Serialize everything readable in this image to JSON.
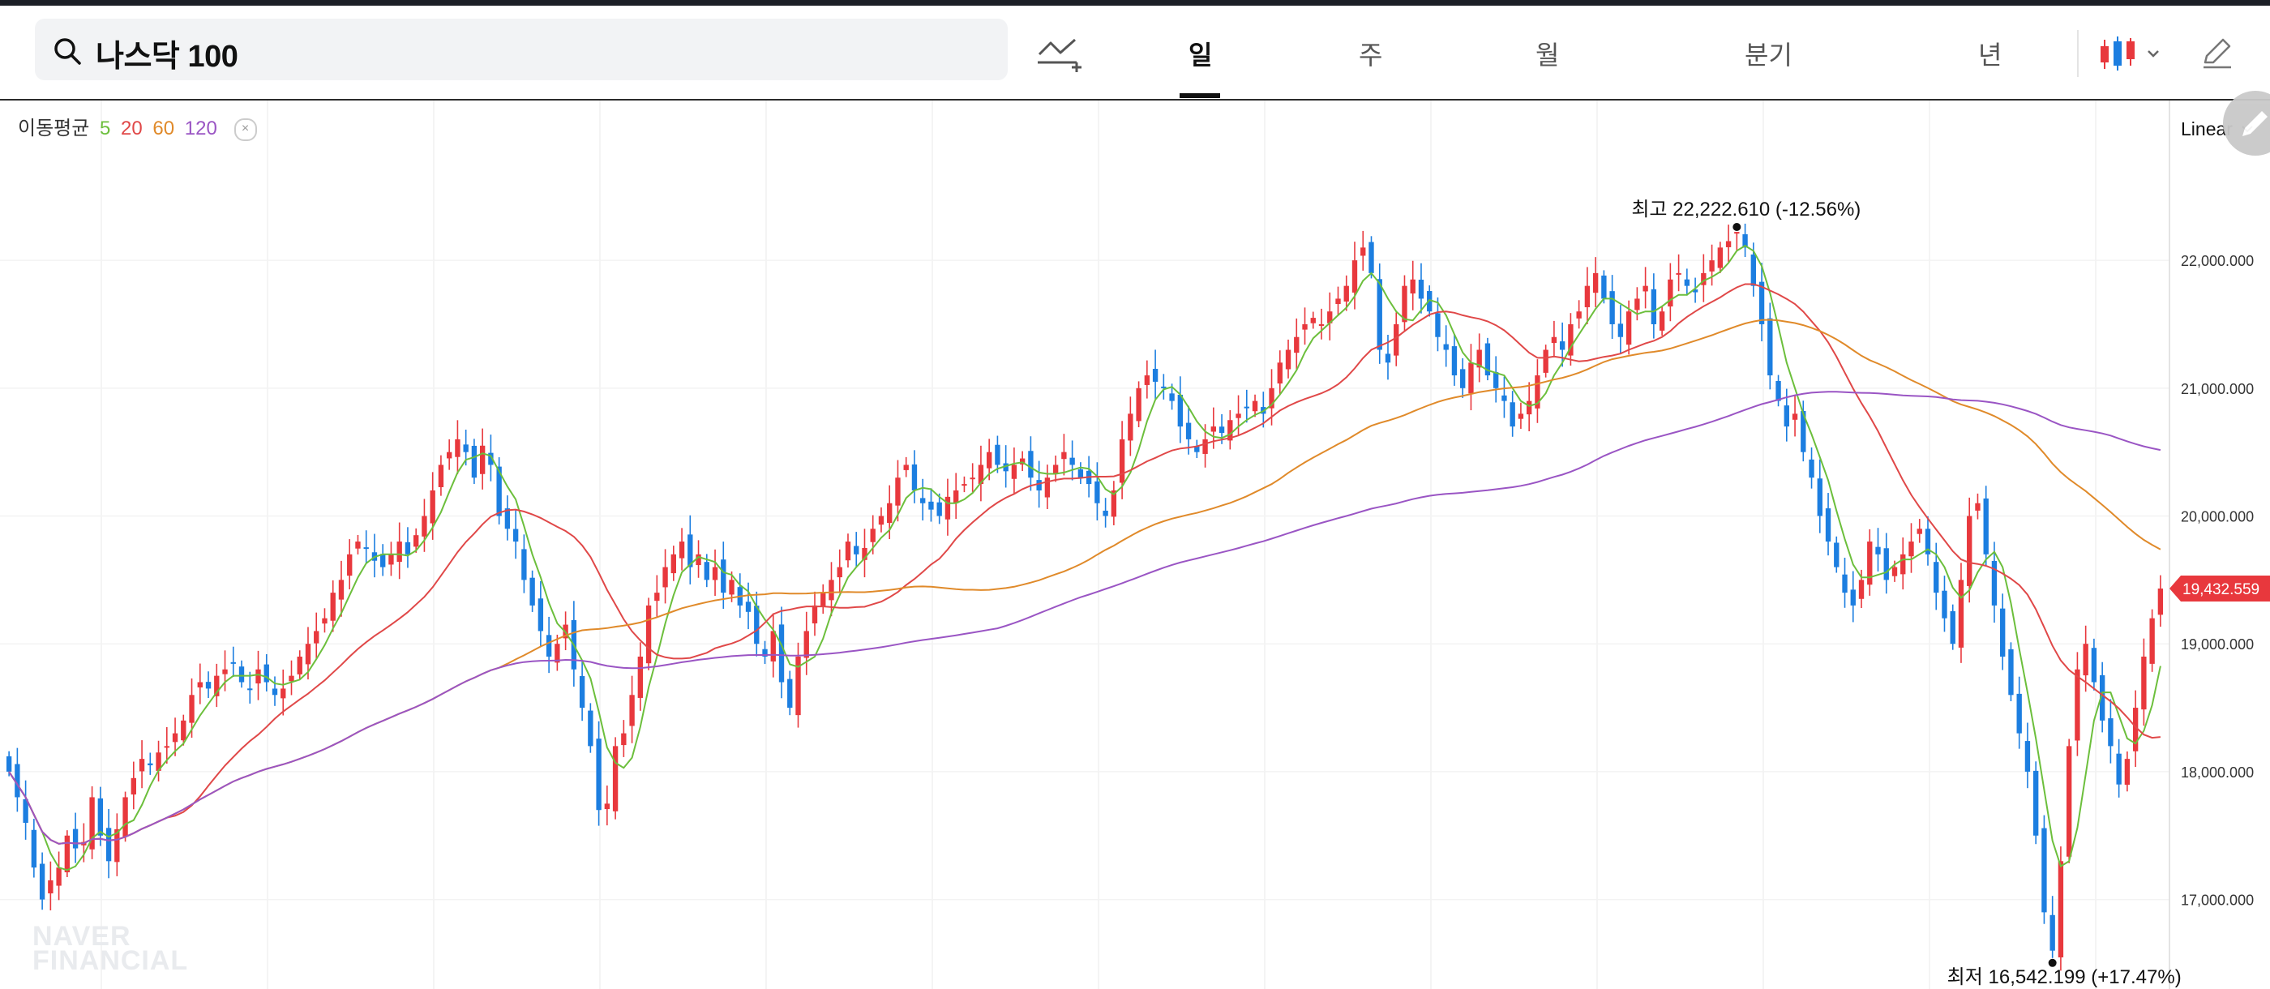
{
  "search": {
    "query": "나스닥 100"
  },
  "periods": [
    {
      "label": "일",
      "active": true
    },
    {
      "label": "주",
      "active": false
    },
    {
      "label": "월",
      "active": false
    },
    {
      "label": "분기",
      "active": false
    },
    {
      "label": "년",
      "active": false
    }
  ],
  "icons": {
    "search": "search-icon",
    "draw": "trendline-add-icon",
    "chart_type": "candlestick-icon",
    "chevron": "chevron-down-icon",
    "edit": "pencil-icon",
    "close": "close-icon"
  },
  "ma_legend": {
    "label": "이동평균",
    "periods": [
      {
        "text": "5",
        "color": "#6cbf3c"
      },
      {
        "text": "20",
        "color": "#e04848"
      },
      {
        "text": "60",
        "color": "#e08a2a"
      },
      {
        "text": "120",
        "color": "#9a55c4"
      }
    ],
    "close_glyph": "×"
  },
  "scale_mode": "Linear",
  "watermark": [
    "NAVER",
    "FINANCIAL"
  ],
  "colors": {
    "up": "#e8383d",
    "down": "#1c7ee0",
    "ma5": "#6cbf3c",
    "ma20": "#e04848",
    "ma60": "#e08a2a",
    "ma120": "#9a55c4"
  },
  "chart_data": {
    "type": "candlestick",
    "title": "나스닥 100",
    "yticks": [
      17000,
      18000,
      19000,
      20000,
      21000,
      22000
    ],
    "ytick_labels": [
      "17,000.000",
      "18,000.000",
      "19,000.000",
      "20,000.000",
      "21,000.000",
      "22,000.000"
    ],
    "ylim": [
      16300,
      23250
    ],
    "last_price": {
      "value": 19432.559,
      "label": "19,432.559"
    },
    "high": {
      "prefix": "최고",
      "value": 22222.61,
      "text": "22,222.610 (-12.56%)"
    },
    "low": {
      "prefix": "최저",
      "value": 16542.199,
      "text": "16,542.199 (+17.47%)"
    },
    "close_series": [
      18000,
      17800,
      17600,
      17250,
      17000,
      17150,
      17250,
      17500,
      17400,
      17450,
      17800,
      17500,
      17300,
      17550,
      17800,
      17950,
      18100,
      18050,
      18150,
      18200,
      18300,
      18400,
      18600,
      18700,
      18650,
      18750,
      18800,
      18850,
      18700,
      18650,
      18800,
      18700,
      18600,
      18650,
      18750,
      18900,
      19000,
      19100,
      19200,
      19400,
      19500,
      19700,
      19800,
      19750,
      19650,
      19600,
      19700,
      19800,
      19700,
      19850,
      20000,
      20200,
      20400,
      20500,
      20600,
      20500,
      20300,
      20550,
      20400,
      20000,
      19900,
      19800,
      19500,
      19300,
      19100,
      18900,
      19000,
      19150,
      18800,
      18500,
      18200,
      17700,
      17750,
      18200,
      18300,
      18600,
      18900,
      19300,
      19400,
      19600,
      19700,
      19800,
      19600,
      19700,
      19500,
      19600,
      19400,
      19500,
      19300,
      19250,
      19000,
      18900,
      19100,
      18700,
      18500,
      18900,
      19100,
      19300,
      19400,
      19500,
      19600,
      19800,
      19700,
      19750,
      19900,
      20000,
      20100,
      20300,
      20400,
      20200,
      20100,
      20050,
      20000,
      20150,
      20200,
      20250,
      20300,
      20400,
      20500,
      20400,
      20350,
      20400,
      20450,
      20300,
      20200,
      20300,
      20400,
      20500,
      20400,
      20300,
      20250,
      20100,
      20000,
      20200,
      20600,
      20800,
      21000,
      21100,
      21050,
      21000,
      20900,
      20700,
      20600,
      20500,
      20600,
      20700,
      20650,
      20750,
      20800,
      20850,
      20900,
      20800,
      21000,
      21200,
      21300,
      21400,
      21500,
      21550,
      21500,
      21600,
      21700,
      21800,
      22000,
      22100,
      21900,
      21300,
      21200,
      21500,
      21800,
      21850,
      21700,
      21600,
      21400,
      21300,
      21100,
      21000,
      21200,
      21300,
      21100,
      21000,
      20900,
      20700,
      20800,
      20900,
      21100,
      21300,
      21400,
      21300,
      21500,
      21600,
      21800,
      21900,
      21700,
      21500,
      21400,
      21600,
      21700,
      21800,
      21500,
      21600,
      21850,
      21900,
      21800,
      21750,
      21900,
      22000,
      22100,
      22150,
      22222,
      22100,
      21800,
      21500,
      21100,
      20900,
      20700,
      20800,
      20500,
      20300,
      20000,
      19800,
      19600,
      19400,
      19300,
      19500,
      19800,
      19700,
      19500,
      19600,
      19700,
      19800,
      19900,
      19700,
      19400,
      19200,
      19000,
      19500,
      20000,
      20100,
      19700,
      19300,
      18900,
      18600,
      18300,
      18000,
      17500,
      16900,
      16600,
      17300,
      18200,
      18800,
      19000,
      18700,
      18400,
      18200,
      17900,
      18100,
      18500,
      18900,
      19200,
      19432.559
    ]
  }
}
